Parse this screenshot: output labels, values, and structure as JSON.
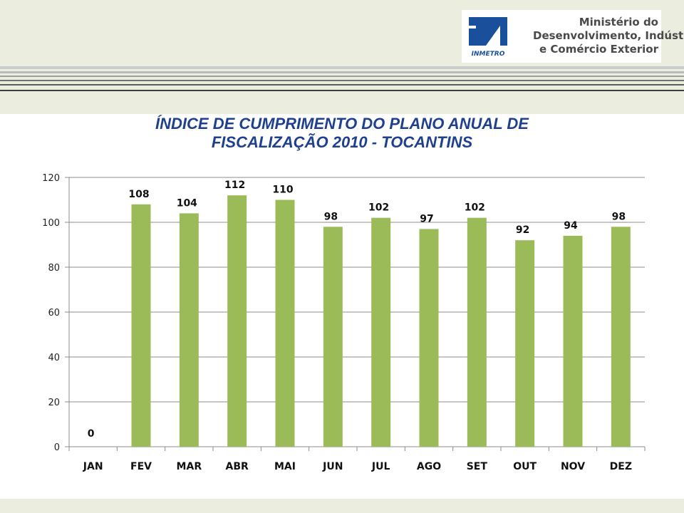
{
  "logo": {
    "brand": "INMETRO",
    "lines": [
      "Ministério do",
      "Desenvolvimento, Indústria",
      "e Comércio Exterior"
    ]
  },
  "colors": {
    "bar": "#9bbb59",
    "title": "#1f3f8f",
    "logo_blue": "#1a4f9c"
  },
  "chart_data": {
    "type": "bar",
    "title_lines": [
      "ÍNDICE DE CUMPRIMENTO DO PLANO ANUAL DE",
      "FISCALIZAÇÃO 2010 - TOCANTINS"
    ],
    "categories": [
      "JAN",
      "FEV",
      "MAR",
      "ABR",
      "MAI",
      "JUN",
      "JUL",
      "AGO",
      "SET",
      "OUT",
      "NOV",
      "DEZ"
    ],
    "values": [
      0,
      108,
      104,
      112,
      110,
      98,
      102,
      97,
      102,
      92,
      94,
      98
    ],
    "ylim": [
      0,
      120
    ],
    "yticks": [
      0,
      20,
      40,
      60,
      80,
      100,
      120
    ],
    "grid": true,
    "data_labels": true,
    "legend": "none"
  }
}
